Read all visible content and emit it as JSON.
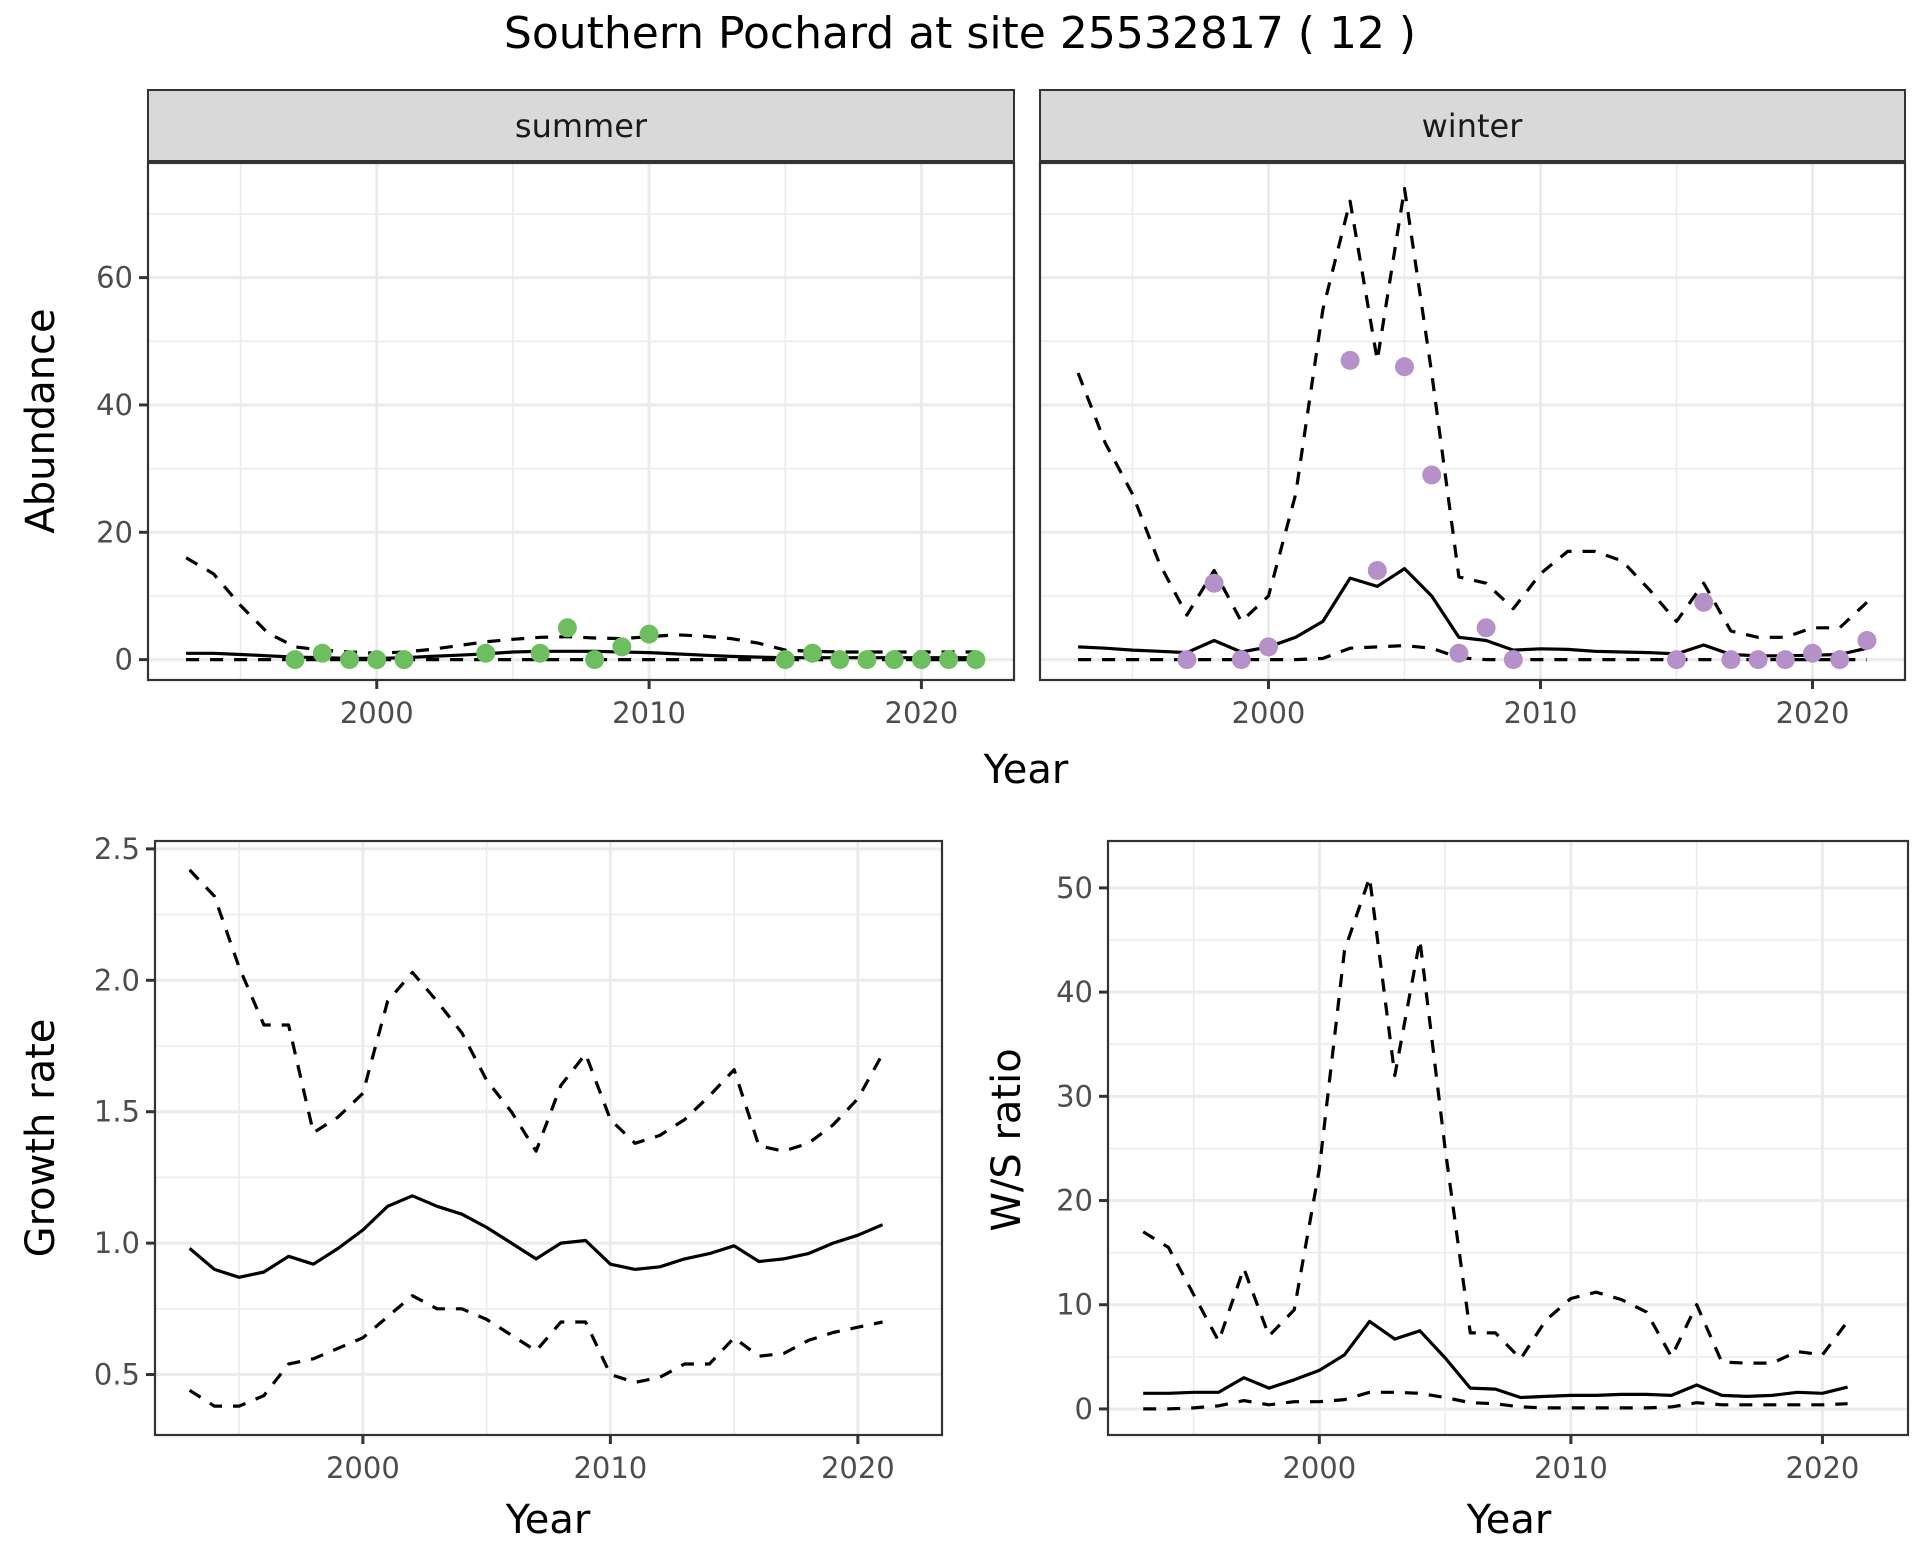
{
  "chart_data": [
    {
      "type": "line",
      "panel": "abundance",
      "title": "Southern Pochard at site 25532817 ( 12 )",
      "xlabel": "Year",
      "ylabel": "Abundance",
      "xlim": [
        1991.6,
        2023.4
      ],
      "ylim": [
        -3.2,
        78
      ],
      "xticks": [
        2000,
        2010,
        2020
      ],
      "yticks": [
        0,
        20,
        40,
        60
      ],
      "grid": true,
      "facets": [
        {
          "label": "summer",
          "point_color": "#6dbe5e",
          "points": {
            "x": [
              1997,
              1998,
              1999,
              2000,
              2001,
              2004,
              2006,
              2007,
              2008,
              2009,
              2010,
              2015,
              2016,
              2017,
              2018,
              2019,
              2020,
              2021,
              2022
            ],
            "y": [
              0,
              1,
              0,
              0,
              0,
              1,
              1,
              5,
              0,
              2,
              4,
              0,
              1,
              0,
              0,
              0,
              0,
              0,
              0
            ]
          },
          "series": [
            {
              "name": "estimate",
              "style": "solid",
              "x": [
                1993,
                1994,
                1995,
                1996,
                1997,
                1998,
                1999,
                2000,
                2001,
                2002,
                2003,
                2004,
                2005,
                2006,
                2007,
                2008,
                2009,
                2010,
                2011,
                2012,
                2013,
                2014,
                2015,
                2016,
                2017,
                2018,
                2019,
                2020,
                2021,
                2022
              ],
              "y": [
                1.0,
                1.0,
                0.8,
                0.6,
                0.4,
                0.3,
                0.2,
                0.2,
                0.3,
                0.5,
                0.7,
                0.9,
                1.2,
                1.3,
                1.3,
                1.3,
                1.2,
                1.1,
                0.9,
                0.7,
                0.5,
                0.4,
                0.3,
                0.3,
                0.3,
                0.3,
                0.3,
                0.3,
                0.3,
                0.3
              ]
            },
            {
              "name": "upper",
              "style": "dashed",
              "x": [
                1993,
                1994,
                1995,
                1996,
                1997,
                1998,
                1999,
                2000,
                2001,
                2002,
                2003,
                2004,
                2005,
                2006,
                2007,
                2008,
                2009,
                2010,
                2011,
                2012,
                2013,
                2014,
                2015,
                2016,
                2017,
                2018,
                2019,
                2020,
                2021,
                2022
              ],
              "y": [
                16,
                13.5,
                8.5,
                4.2,
                2.0,
                1.5,
                1.2,
                1.0,
                1.2,
                1.6,
                2.2,
                2.8,
                3.2,
                3.5,
                3.6,
                3.4,
                3.3,
                3.6,
                3.9,
                3.7,
                3.3,
                2.6,
                1.5,
                1.3,
                1.2,
                1.2,
                1.2,
                1.2,
                1.2,
                1.2
              ]
            },
            {
              "name": "lower",
              "style": "dashed",
              "x": [
                1993,
                2022
              ],
              "y": [
                0,
                0
              ]
            }
          ]
        },
        {
          "label": "winter",
          "point_color": "#b591c7",
          "points": {
            "x": [
              1997,
              1998,
              1999,
              2000,
              2003,
              2004,
              2005,
              2006,
              2007,
              2008,
              2009,
              2015,
              2016,
              2017,
              2018,
              2019,
              2020,
              2021,
              2022
            ],
            "y": [
              0,
              12,
              0,
              2,
              47,
              14,
              46,
              29,
              1,
              5,
              0,
              0,
              9,
              0,
              0,
              0,
              1,
              0,
              3
            ]
          },
          "series": [
            {
              "name": "estimate",
              "style": "solid",
              "x": [
                1993,
                1994,
                1995,
                1996,
                1997,
                1998,
                1999,
                2000,
                2001,
                2002,
                2003,
                2004,
                2005,
                2006,
                2007,
                2008,
                2009,
                2010,
                2011,
                2012,
                2013,
                2014,
                2015,
                2016,
                2017,
                2018,
                2019,
                2020,
                2021,
                2022
              ],
              "y": [
                2.0,
                1.8,
                1.5,
                1.3,
                1.1,
                3.0,
                1.2,
                2.0,
                3.5,
                6.0,
                12.8,
                11.5,
                14.3,
                10.0,
                3.5,
                3.0,
                1.5,
                1.7,
                1.6,
                1.3,
                1.2,
                1.1,
                0.9,
                2.3,
                0.8,
                0.6,
                0.6,
                0.7,
                0.8,
                1.8
              ]
            },
            {
              "name": "upper",
              "style": "dashed",
              "x": [
                1993,
                1994,
                1995,
                1996,
                1997,
                1998,
                1999,
                2000,
                2001,
                2002,
                2003,
                2004,
                2005,
                2006,
                2007,
                2008,
                2009,
                2010,
                2011,
                2012,
                2013,
                2014,
                2015,
                2016,
                2017,
                2018,
                2019,
                2020,
                2021,
                2022
              ],
              "y": [
                45,
                34,
                26,
                15,
                7,
                14,
                6,
                10,
                26,
                55,
                72,
                47,
                74,
                45,
                13,
                12,
                8,
                13.5,
                17,
                17,
                15.5,
                11,
                6,
                12,
                4.5,
                3.5,
                3.5,
                5,
                5,
                9
              ]
            },
            {
              "name": "lower",
              "style": "dashed",
              "x": [
                1993,
                1994,
                1995,
                1996,
                1997,
                1998,
                1999,
                2000,
                2001,
                2002,
                2003,
                2004,
                2005,
                2006,
                2007,
                2008,
                2009,
                2010,
                2011,
                2012,
                2013,
                2014,
                2015,
                2016,
                2017,
                2018,
                2019,
                2020,
                2021,
                2022
              ],
              "y": [
                0,
                0,
                0,
                0,
                0,
                0,
                0,
                0,
                0,
                0.2,
                1.8,
                2.0,
                2.2,
                1.8,
                0.3,
                0,
                0,
                0,
                0,
                0,
                0,
                0,
                0,
                0,
                0,
                0,
                0,
                0,
                0,
                0
              ]
            }
          ]
        }
      ]
    },
    {
      "type": "line",
      "panel": "growth",
      "xlabel": "Year",
      "ylabel": "Growth rate",
      "xlim": [
        1991.6,
        2023.4
      ],
      "ylim": [
        0.27,
        2.53
      ],
      "xticks": [
        2000,
        2010,
        2020
      ],
      "yticks": [
        0.5,
        1.0,
        1.5,
        2.0,
        2.5
      ],
      "ytick_labels": [
        "0.5",
        "1.0",
        "1.5",
        "2.0",
        "2.5"
      ],
      "grid": true,
      "series": [
        {
          "name": "estimate",
          "style": "solid",
          "x": [
            1993,
            1994,
            1995,
            1996,
            1997,
            1998,
            1999,
            2000,
            2001,
            2002,
            2003,
            2004,
            2005,
            2006,
            2007,
            2008,
            2009,
            2010,
            2011,
            2012,
            2013,
            2014,
            2015,
            2016,
            2017,
            2018,
            2019,
            2020,
            2021
          ],
          "y": [
            0.98,
            0.9,
            0.87,
            0.89,
            0.95,
            0.92,
            0.98,
            1.05,
            1.14,
            1.18,
            1.14,
            1.11,
            1.06,
            1.0,
            0.94,
            1.0,
            1.01,
            0.92,
            0.9,
            0.91,
            0.94,
            0.96,
            0.99,
            0.93,
            0.94,
            0.96,
            1.0,
            1.03,
            1.07
          ]
        },
        {
          "name": "upper",
          "style": "dashed",
          "x": [
            1993,
            1994,
            1995,
            1996,
            1997,
            1998,
            1999,
            2000,
            2001,
            2002,
            2003,
            2004,
            2005,
            2006,
            2007,
            2008,
            2009,
            2010,
            2011,
            2012,
            2013,
            2014,
            2015,
            2016,
            2017,
            2018,
            2019,
            2020,
            2021
          ],
          "y": [
            2.42,
            2.32,
            2.05,
            1.83,
            1.83,
            1.42,
            1.48,
            1.57,
            1.92,
            2.03,
            1.92,
            1.8,
            1.62,
            1.5,
            1.35,
            1.6,
            1.72,
            1.47,
            1.38,
            1.41,
            1.47,
            1.56,
            1.66,
            1.37,
            1.35,
            1.38,
            1.45,
            1.55,
            1.72
          ]
        },
        {
          "name": "lower",
          "style": "dashed",
          "x": [
            1993,
            1994,
            1995,
            1996,
            1997,
            1998,
            1999,
            2000,
            2001,
            2002,
            2003,
            2004,
            2005,
            2006,
            2007,
            2008,
            2009,
            2010,
            2011,
            2012,
            2013,
            2014,
            2015,
            2016,
            2017,
            2018,
            2019,
            2020,
            2021
          ],
          "y": [
            0.44,
            0.38,
            0.38,
            0.42,
            0.54,
            0.56,
            0.6,
            0.64,
            0.72,
            0.8,
            0.75,
            0.75,
            0.71,
            0.65,
            0.59,
            0.7,
            0.7,
            0.5,
            0.47,
            0.49,
            0.54,
            0.54,
            0.64,
            0.57,
            0.58,
            0.63,
            0.66,
            0.68,
            0.7
          ]
        }
      ]
    },
    {
      "type": "line",
      "panel": "ws_ratio",
      "xlabel": "Year",
      "ylabel": "W/S ratio",
      "xlim": [
        1991.6,
        2023.4
      ],
      "ylim": [
        -2.5,
        54.5
      ],
      "xticks": [
        2000,
        2010,
        2020
      ],
      "yticks": [
        0,
        10,
        20,
        30,
        40,
        50
      ],
      "grid": true,
      "series": [
        {
          "name": "estimate",
          "style": "solid",
          "x": [
            1993,
            1994,
            1995,
            1996,
            1997,
            1998,
            1999,
            2000,
            2001,
            2002,
            2003,
            2004,
            2005,
            2006,
            2007,
            2008,
            2009,
            2010,
            2011,
            2012,
            2013,
            2014,
            2015,
            2016,
            2017,
            2018,
            2019,
            2020,
            2021
          ],
          "y": [
            1.5,
            1.5,
            1.6,
            1.6,
            3.0,
            2.0,
            2.8,
            3.7,
            5.2,
            8.4,
            6.7,
            7.5,
            4.9,
            2.0,
            1.9,
            1.1,
            1.2,
            1.3,
            1.3,
            1.4,
            1.4,
            1.3,
            2.3,
            1.3,
            1.2,
            1.3,
            1.6,
            1.5,
            2.1
          ]
        },
        {
          "name": "upper",
          "style": "dashed",
          "x": [
            1993,
            1994,
            1995,
            1996,
            1997,
            1998,
            1999,
            2000,
            2001,
            2002,
            2003,
            2004,
            2005,
            2006,
            2007,
            2008,
            2009,
            2010,
            2011,
            2012,
            2013,
            2014,
            2015,
            2016,
            2017,
            2018,
            2019,
            2020,
            2021
          ],
          "y": [
            17,
            15.5,
            11,
            6.5,
            13.5,
            7,
            9.5,
            23,
            44,
            51,
            32,
            45,
            25,
            7.3,
            7.3,
            4.8,
            8.5,
            10.6,
            11.2,
            10.5,
            9.3,
            5.0,
            10,
            4.5,
            4.4,
            4.4,
            5.5,
            5.2,
            8.4
          ]
        },
        {
          "name": "lower",
          "style": "dashed",
          "x": [
            1993,
            1994,
            1995,
            1996,
            1997,
            1998,
            1999,
            2000,
            2001,
            2002,
            2003,
            2004,
            2005,
            2006,
            2007,
            2008,
            2009,
            2010,
            2011,
            2012,
            2013,
            2014,
            2015,
            2016,
            2017,
            2018,
            2019,
            2020,
            2021
          ],
          "y": [
            0,
            0,
            0.1,
            0.3,
            0.8,
            0.4,
            0.7,
            0.7,
            0.9,
            1.6,
            1.6,
            1.5,
            1.1,
            0.6,
            0.5,
            0.2,
            0.1,
            0.1,
            0.1,
            0.1,
            0.1,
            0.2,
            0.6,
            0.4,
            0.4,
            0.4,
            0.4,
            0.4,
            0.5
          ]
        }
      ]
    }
  ],
  "labels": {
    "title": "Southern Pochard at site 25532817 ( 12 )",
    "top_xlabel": "Year",
    "top_ylabel": "Abundance",
    "strip_summer": "summer",
    "strip_winter": "winter",
    "growth_xlabel": "Year",
    "growth_ylabel": "Growth rate",
    "ws_xlabel": "Year",
    "ws_ylabel": "W/S ratio"
  }
}
